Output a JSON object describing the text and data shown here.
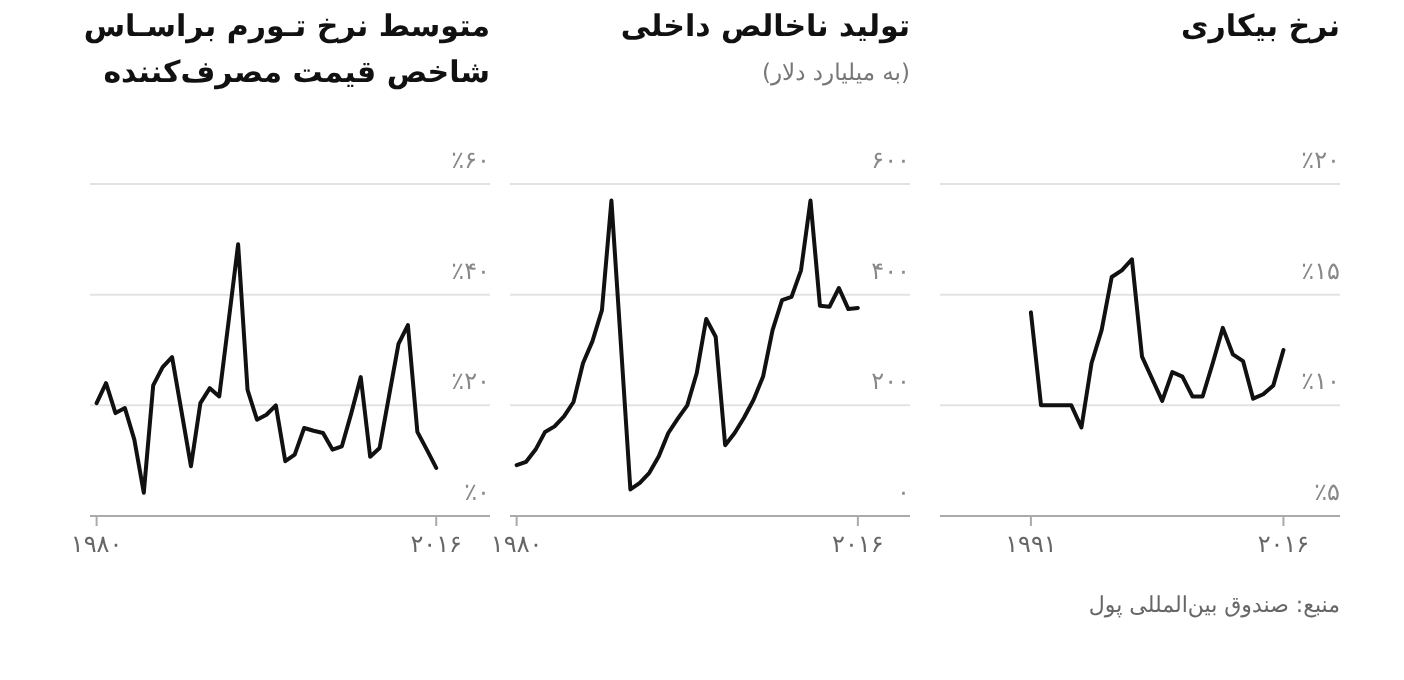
{
  "chart_data": [
    {
      "type": "line",
      "title": "نرخ بیکاری",
      "x": [
        1991,
        1992,
        1993,
        1994,
        1995,
        1996,
        1997,
        1998,
        1999,
        2000,
        2001,
        2002,
        2003,
        2004,
        2005,
        2006,
        2007,
        2008,
        2009,
        2010,
        2011,
        2012,
        2013,
        2014,
        2015,
        2016
      ],
      "series": [
        {
          "color": "#111111",
          "values": [
            14.2,
            10.0,
            10.0,
            10.0,
            10.0,
            9.0,
            11.9,
            13.4,
            15.8,
            16.1,
            16.6,
            12.2,
            11.2,
            10.2,
            11.5,
            11.3,
            10.4,
            10.4,
            11.9,
            13.5,
            12.3,
            12.0,
            10.3,
            10.5,
            10.9,
            12.5
          ]
        }
      ],
      "xlim": [
        1982,
        2021.6
      ],
      "xticks": [
        {
          "value": 1991,
          "label": "۱۹۹۱"
        },
        {
          "value": 2016,
          "label": "۲۰۱۶"
        }
      ],
      "ylim": [
        5,
        20
      ],
      "yticks": [
        {
          "value": 5,
          "label": "٪۵"
        },
        {
          "value": 10,
          "label": "٪۱۰"
        },
        {
          "value": 15,
          "label": "٪۱۵"
        },
        {
          "value": 20,
          "label": "٪۲۰"
        }
      ],
      "grid": "y",
      "annotations": [
        "منبع: صندوق بین‌المللی پول"
      ]
    },
    {
      "type": "line",
      "title": "تولید ناخالص داخلی",
      "subtitle": "(به میلیارد دلار)",
      "x": [
        1980,
        1981,
        1982,
        1983,
        1984,
        1985,
        1986,
        1987,
        1988,
        1989,
        1990,
        1991,
        1992,
        1993,
        1994,
        1995,
        1996,
        1997,
        1998,
        1999,
        2000,
        2001,
        2002,
        2003,
        2004,
        2005,
        2006,
        2007,
        2008,
        2009,
        2010,
        2011,
        2012,
        2013,
        2014,
        2015,
        2016
      ],
      "xlim": [
        1979.3,
        2021.5
      ],
      "series": [
        {
          "color": "#111111",
          "values": [
            92,
            98,
            120,
            152,
            162,
            180,
            206,
            276,
            316,
            372,
            570,
            310,
            48,
            60,
            78,
            108,
            150,
            176,
            200,
            258,
            356,
            324,
            128,
            150,
            178,
            210,
            252,
            336,
            390,
            396,
            444,
            570,
            380,
            378,
            412,
            374,
            376
          ]
        }
      ],
      "xticks": [
        {
          "value": 1980,
          "label": "۱۹۸۰"
        },
        {
          "value": 2016,
          "label": "۲۰۱۶"
        }
      ],
      "ylim": [
        0,
        600
      ],
      "yticks": [
        {
          "value": 0,
          "label": "۰"
        },
        {
          "value": 200,
          "label": "۲۰۰"
        },
        {
          "value": 400,
          "label": "۴۰۰"
        },
        {
          "value": 600,
          "label": "۶۰۰"
        }
      ],
      "grid": "y"
    },
    {
      "type": "line",
      "title": "متوسط نرخ تـورم براسـاس\nشاخص قیمت مصرف‌کننده",
      "x": [
        1980,
        1981,
        1982,
        1983,
        1984,
        1985,
        1986,
        1987,
        1988,
        1989,
        1990,
        1991,
        1992,
        1993,
        1994,
        1995,
        1996,
        1997,
        1998,
        1999,
        2000,
        2001,
        2002,
        2003,
        2004,
        2005,
        2006,
        2007,
        2008,
        2009,
        2010,
        2011,
        2012,
        2013,
        2014,
        2015,
        2016
      ],
      "series": [
        {
          "color": "#111111",
          "values": [
            20.4,
            24.0,
            18.6,
            19.5,
            13.8,
            4.2,
            23.6,
            26.9,
            28.7,
            18.9,
            9.0,
            20.4,
            23.1,
            21.6,
            35.3,
            49.1,
            22.8,
            17.4,
            18.3,
            20.0,
            9.9,
            11.1,
            15.9,
            15.4,
            15.0,
            12.0,
            12.6,
            18.6,
            25.1,
            10.7,
            12.3,
            21.7,
            31.1,
            34.5,
            15.2,
            12.0,
            8.7
          ]
        }
      ],
      "xlim": [
        1979.3,
        2021.7
      ],
      "xticks": [
        {
          "value": 1980,
          "label": "۱۹۸۰"
        },
        {
          "value": 2016,
          "label": "۲۰۱۶"
        }
      ],
      "ylim": [
        0,
        60
      ],
      "yticks": [
        {
          "value": 0,
          "label": "٪۰"
        },
        {
          "value": 20,
          "label": "٪۲۰"
        },
        {
          "value": 40,
          "label": "٪۴۰"
        },
        {
          "value": 60,
          "label": "٪۶۰"
        }
      ],
      "grid": "y"
    }
  ]
}
